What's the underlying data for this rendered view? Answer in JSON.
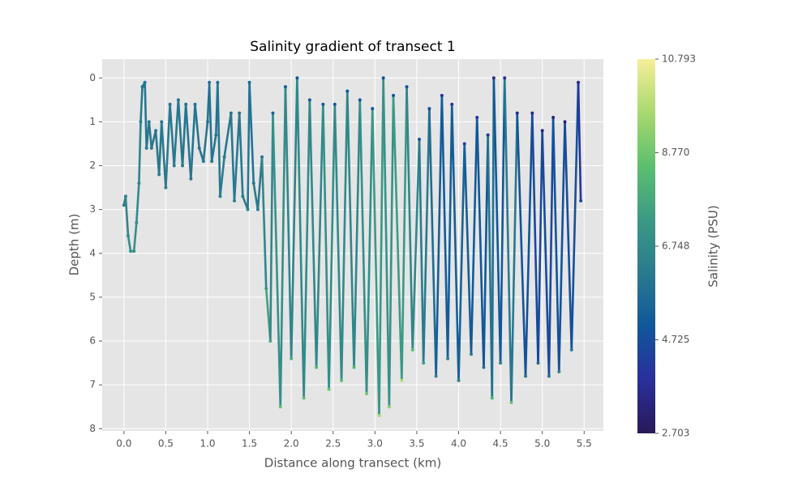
{
  "chart_data": {
    "type": "scatter",
    "title": "Salinity gradient of transect 1",
    "x_label": "Distance along transect (km)",
    "y_label": "Depth (m)",
    "colorbar_label": "Salinity (PSU)",
    "xlim": [
      -0.26,
      5.73
    ],
    "ylim": [
      8.05,
      -0.43
    ],
    "xticks": [
      {
        "value": 0,
        "label": "0.0"
      },
      0.5,
      {
        "value": 1,
        "label": "1.0"
      },
      1.5,
      {
        "value": 2,
        "label": "2.0"
      },
      2.5,
      {
        "value": 3,
        "label": "3.0"
      },
      3.5,
      {
        "value": 4,
        "label": "4.0"
      },
      4.5,
      {
        "value": 5,
        "label": "5.0"
      },
      5.5
    ],
    "yticks": [
      0,
      1,
      2,
      3,
      4,
      5,
      6,
      7,
      8
    ],
    "clim": [
      2.703,
      10.793
    ],
    "cticks": [
      2.703,
      4.725,
      6.748,
      {
        "value": 8.77,
        "label": "8.770"
      },
      10.793
    ],
    "colormap": [
      "#291a58",
      "#2a2f9b",
      "#10579a",
      "#2a7a8e",
      "#3b9a85",
      "#5cbf6e",
      "#a8d96e",
      "#f6ee99"
    ],
    "grid": true,
    "x": [
      0.0,
      0.02,
      0.05,
      0.08,
      0.12,
      0.15,
      0.18,
      0.2,
      0.22,
      0.25,
      0.27,
      0.3,
      0.33,
      0.38,
      0.42,
      0.45,
      0.5,
      0.55,
      0.6,
      0.65,
      0.7,
      0.74,
      0.8,
      0.85,
      0.9,
      0.95,
      1.0,
      1.02,
      1.05,
      1.1,
      1.12,
      1.15,
      1.2,
      1.28,
      1.32,
      1.38,
      1.42,
      1.48,
      1.5,
      1.55,
      1.6,
      1.65,
      1.7,
      1.75,
      1.78,
      1.87,
      1.93,
      2.0,
      2.07,
      2.15,
      2.22,
      2.3,
      2.38,
      2.45,
      2.52,
      2.6,
      2.67,
      2.75,
      2.82,
      2.9,
      2.97,
      3.05,
      3.1,
      3.17,
      3.22,
      3.32,
      3.38,
      3.45,
      3.53,
      3.58,
      3.65,
      3.73,
      3.8,
      3.87,
      3.92,
      4.0,
      4.07,
      4.15,
      4.22,
      4.3,
      4.35,
      4.4,
      4.42,
      4.5,
      4.55,
      4.63,
      4.7,
      4.8,
      4.88,
      4.95,
      5.0,
      5.08,
      5.13,
      5.2,
      5.27,
      5.35,
      5.43,
      5.46
    ],
    "y": [
      2.9,
      2.7,
      3.6,
      3.95,
      3.95,
      3.3,
      2.4,
      1.0,
      0.2,
      0.1,
      1.6,
      1.0,
      1.6,
      1.2,
      2.2,
      1.0,
      2.5,
      0.6,
      2.0,
      0.5,
      2.0,
      0.6,
      2.3,
      0.6,
      1.6,
      1.9,
      1.0,
      0.1,
      1.9,
      1.3,
      0.1,
      2.7,
      1.8,
      0.8,
      2.8,
      0.8,
      2.7,
      3.0,
      0.1,
      2.4,
      3.0,
      1.8,
      4.8,
      6.0,
      0.8,
      7.5,
      0.2,
      6.4,
      0.0,
      7.3,
      0.5,
      6.6,
      0.6,
      7.1,
      0.6,
      6.9,
      0.3,
      6.6,
      0.5,
      7.2,
      0.7,
      7.7,
      0.0,
      7.5,
      0.4,
      6.9,
      0.2,
      6.2,
      1.4,
      6.5,
      0.7,
      6.8,
      0.4,
      6.4,
      0.6,
      6.9,
      1.5,
      6.3,
      0.9,
      6.6,
      1.3,
      7.3,
      0.0,
      6.5,
      0.0,
      7.4,
      0.8,
      6.8,
      0.8,
      6.5,
      1.2,
      6.8,
      0.9,
      6.7,
      1.0,
      6.2,
      0.1,
      2.8
    ],
    "salinity": [
      6.3,
      6.3,
      6.8,
      7.0,
      7.0,
      6.9,
      6.6,
      6.3,
      6.0,
      6.0,
      6.1,
      6.1,
      6.1,
      6.0,
      6.2,
      6.0,
      6.3,
      6.0,
      6.2,
      6.0,
      6.1,
      5.9,
      6.1,
      5.9,
      6.0,
      6.1,
      6.0,
      5.8,
      6.0,
      6.0,
      5.8,
      6.3,
      6.1,
      5.9,
      6.3,
      5.9,
      6.3,
      6.4,
      5.7,
      6.1,
      6.3,
      6.0,
      7.2,
      7.8,
      5.4,
      8.6,
      5.2,
      8.0,
      5.0,
      8.4,
      5.1,
      8.2,
      5.1,
      8.7,
      5.0,
      8.4,
      5.0,
      8.2,
      5.0,
      8.8,
      5.0,
      9.6,
      4.8,
      9.2,
      4.9,
      9.8,
      4.8,
      8.4,
      4.9,
      7.5,
      4.8,
      6.6,
      3.9,
      6.4,
      4.0,
      6.5,
      4.2,
      6.2,
      4.0,
      6.0,
      4.0,
      8.0,
      3.6,
      6.4,
      3.7,
      8.6,
      3.6,
      6.2,
      3.5,
      5.8,
      3.3,
      6.0,
      3.3,
      6.5,
      3.2,
      6.2,
      3.4,
      4.6
    ]
  }
}
